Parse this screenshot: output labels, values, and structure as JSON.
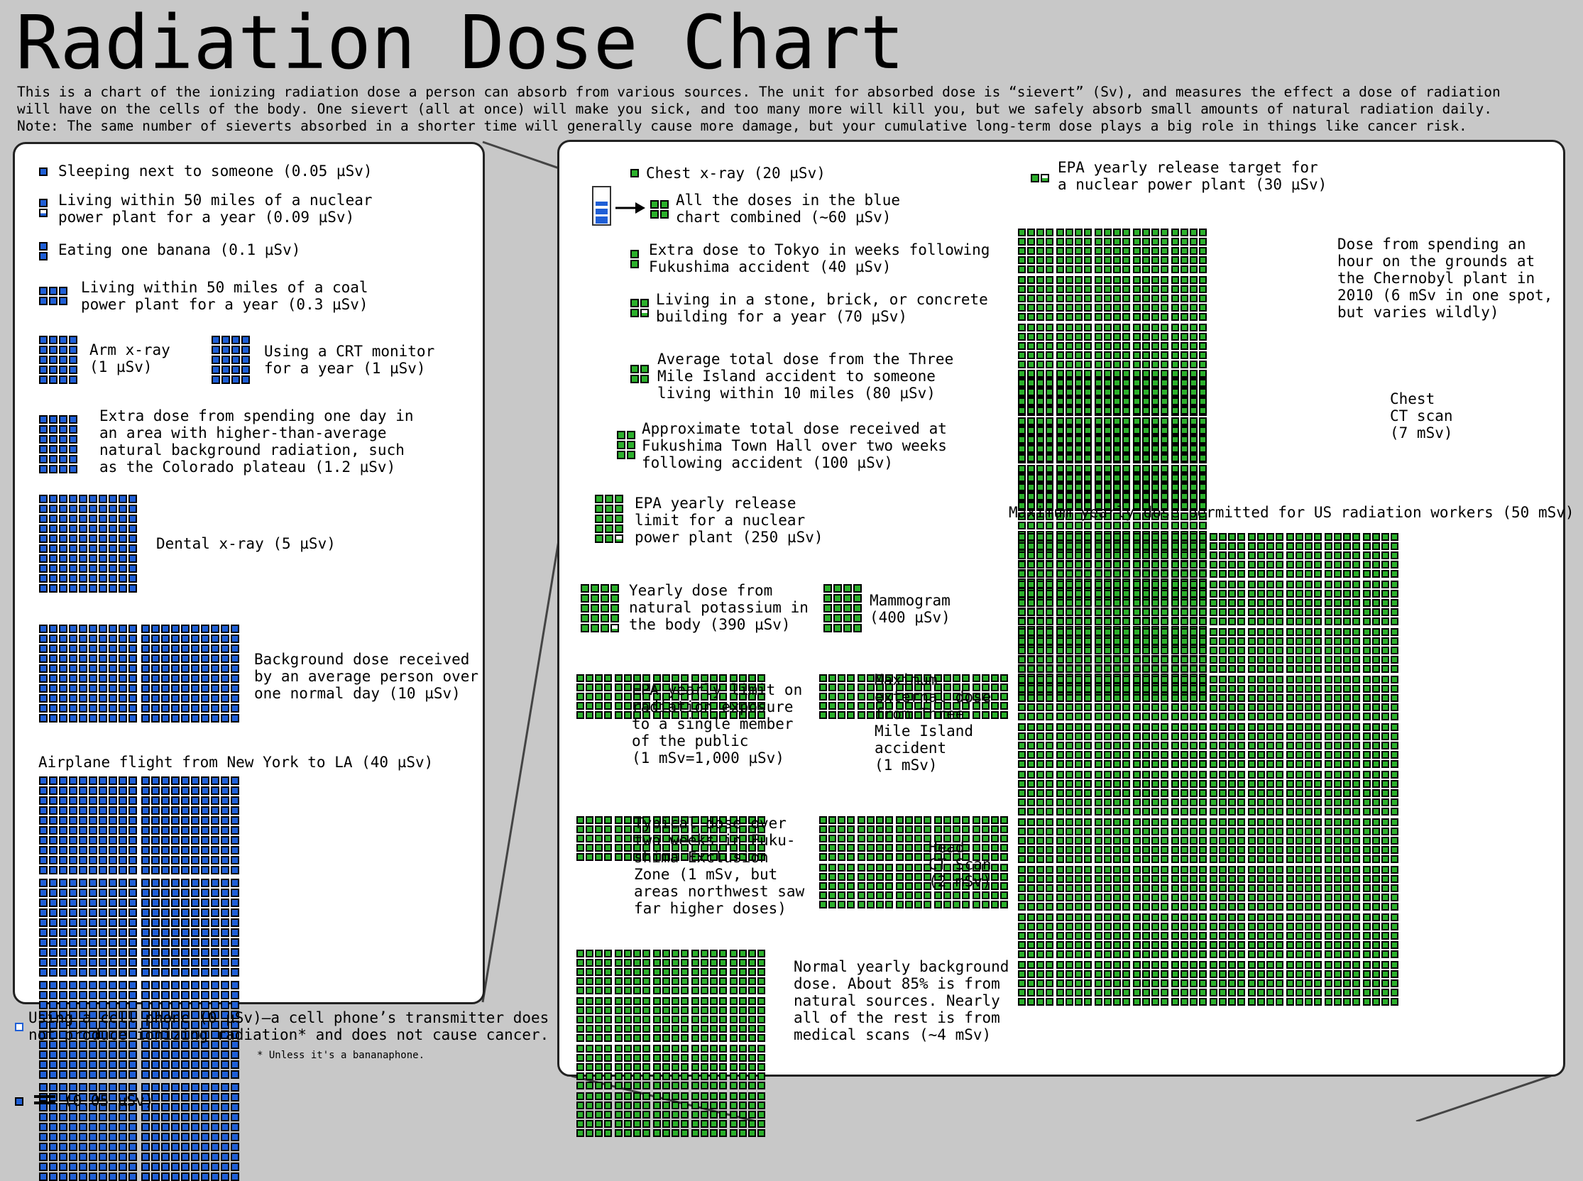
{
  "title": "Radiation Dose Chart",
  "intro": [
    "This is a chart of the ionizing radiation dose a person can absorb from various sources. The unit for absorbed dose is “sievert” (Sv), and measures the effect a dose of radiation",
    "will have on the cells of the body. One sievert (all at once) will make you sick, and too many more will kill you, but we safely absorb small amounts of natural radiation daily.",
    "Note: The same number of sieverts absorbed in a shorter time will generally cause more damage, but your cumulative long-term dose plays a big role in things like cancer risk."
  ],
  "colors": {
    "blue": "#1f5fd6",
    "green": "#2bb02b",
    "background": "#c8c8c8",
    "panel": "#ffffff",
    "cell_border": "#000000"
  },
  "chart_data": {
    "type": "unit-grid",
    "unit": "µSv",
    "blue_square_value": 0.05,
    "green_square_value": 20,
    "blue_series": [
      {
        "label": "Sleeping next to someone (0.05 µSv)",
        "value_usv": 0.05
      },
      {
        "label": "Living within 50 miles of a nuclear power plant for a year (0.09 µSv)",
        "value_usv": 0.09
      },
      {
        "label": "Eating one banana (0.1 µSv)",
        "value_usv": 0.1
      },
      {
        "label": "Living within 50 miles of a coal power plant for a year (0.3 µSv)",
        "value_usv": 0.3
      },
      {
        "label": "Arm x-ray (1 µSv)",
        "value_usv": 1
      },
      {
        "label": "Using a CRT monitor for a year (1 µSv)",
        "value_usv": 1
      },
      {
        "label": "Extra dose from spending one day in an area with higher-than-average natural background radiation, such as the Colorado plateau (1.2 µSv)",
        "value_usv": 1.2
      },
      {
        "label": "Dental x-ray (5 µSv)",
        "value_usv": 5
      },
      {
        "label": "Background dose received by an average person over one normal day (10 µSv)",
        "value_usv": 10
      },
      {
        "label": "Airplane flight from New York to LA (40 µSv)",
        "value_usv": 40
      },
      {
        "label": "Using a cell phone (0 µSv)",
        "value_usv": 0
      }
    ],
    "green_series": [
      {
        "label": "Chest x-ray (20 µSv)",
        "value_usv": 20
      },
      {
        "label": "All the doses in the blue chart combined (~60 µSv)",
        "value_usv": 60
      },
      {
        "label": "EPA yearly release target for a nuclear power plant (30 µSv)",
        "value_usv": 30
      },
      {
        "label": "Extra dose to Tokyo in weeks following Fukushima accident (40 µSv)",
        "value_usv": 40
      },
      {
        "label": "Living in a stone, brick, or concrete building for a year (70 µSv)",
        "value_usv": 70
      },
      {
        "label": "Average total dose from the Three Mile Island accident to someone living within 10 miles (80 µSv)",
        "value_usv": 80
      },
      {
        "label": "Approximate total dose received at Fukushima Town Hall over two weeks following accident (100 µSv)",
        "value_usv": 100
      },
      {
        "label": "EPA yearly release limit for a nuclear power plant (250 µSv)",
        "value_usv": 250
      },
      {
        "label": "Yearly dose from natural potassium in the body (390 µSv)",
        "value_usv": 390
      },
      {
        "label": "Mammogram (400 µSv)",
        "value_usv": 400
      },
      {
        "label": "EPA yearly limit on radiation exposure to a single member of the public (1 mSv=1,000 µSv)",
        "value_usv": 1000
      },
      {
        "label": "Maximum external dose from Three Mile Island accident (1 mSv)",
        "value_usv": 1000
      },
      {
        "label": "Typical dose over two weeks in Fukushima Exclusion Zone (1 mSv)",
        "value_usv": 1000
      },
      {
        "label": "Head CT Scan (2 mSv)",
        "value_usv": 2000
      },
      {
        "label": "Normal yearly background dose (~4 mSv)",
        "value_usv": 4000
      },
      {
        "label": "Dose from spending an hour on the grounds at the Chernobyl plant in 2010 (6 mSv)",
        "value_usv": 6000
      },
      {
        "label": "Chest CT scan (7 mSv)",
        "value_usv": 7000
      },
      {
        "label": "Maximum yearly dose permitted for US radiation workers (50 mSv)",
        "value_usv": 50000
      }
    ]
  },
  "blue_panel": {
    "sleeping": "Sleeping next to someone (0.05 µSv)",
    "nuclear_1": "Living within 50 miles of a nuclear",
    "nuclear_2": "power plant for a year (0.09 µSv)",
    "banana": "Eating one banana (0.1 µSv)",
    "coal_1": "Living within 50 miles of a coal",
    "coal_2": "power plant for a year (0.3 µSv)",
    "arm_1": "Arm x-ray",
    "arm_2": "(1 µSv)",
    "crt_1": "Using a CRT monitor",
    "crt_2": "for a year (1 µSv)",
    "colorado_1": "Extra dose from spending one day in",
    "colorado_2": "an area with higher-than-average",
    "colorado_3": "natural background radiation, such",
    "colorado_4": "as the Colorado plateau (1.2 µSv)",
    "dental": "Dental x-ray (5 µSv)",
    "background_1": "Background dose received",
    "background_2": "by an average person over",
    "background_3": "one normal day (10 µSv)",
    "airplane": "Airplane flight from New York to LA (40 µSv)"
  },
  "cellphone_1": "Using a cell phone (0 µSv)—a cell phone’s transmitter does",
  "cellphone_2": "not produce ionizing radiation* and does not cause cancer.",
  "footnote": "* Unless it's a bananaphone.",
  "legend": "(0.05 µSv)",
  "green_panel": {
    "chest": "Chest x-ray (20 µSv)",
    "combined_1": "All the doses in the blue",
    "combined_2": "chart combined (~60 µSv)",
    "epa_target_1": "EPA yearly release target for",
    "epa_target_2": "a nuclear power plant (30 µSv)",
    "tokyo_1": "Extra dose to Tokyo in weeks following",
    "tokyo_2": "Fukushima accident (40 µSv)",
    "stone_1": "Living in a stone, brick, or concrete",
    "stone_2": "building for a year (70 µSv)",
    "tmi_1": "Average total dose from the Three",
    "tmi_2": "Mile Island accident to someone",
    "tmi_3": "living within 10 miles (80 µSv)",
    "townhall_1": "Approximate total dose received at",
    "townhall_2": "Fukushima Town Hall over two weeks",
    "townhall_3": "following accident (100 µSv)",
    "epa_limit_1": "EPA yearly release",
    "epa_limit_2": "limit for a nuclear",
    "epa_limit_3": "power plant (250 µSv)",
    "potassium_1": "Yearly dose from",
    "potassium_2": "natural potassium in",
    "potassium_3": "the body (390 µSv)",
    "mammogram_1": "Mammogram",
    "mammogram_2": "(400 µSv)",
    "public_1": "EPA yearly limit on",
    "public_2": "radiation exposure",
    "public_3": "to a single member",
    "public_4": "of the public",
    "public_5": "(1 mSv=1,000 µSv)",
    "tmi_max_1": "Maximum",
    "tmi_max_2": "external dose",
    "tmi_max_3": "from Three",
    "tmi_max_4": "Mile Island",
    "tmi_max_5": "accident",
    "tmi_max_6": "(1 mSv)",
    "exclusion_1": "Typical dose over",
    "exclusion_2": "two weeks in Fuku-",
    "exclusion_3": "shima Exclusion",
    "exclusion_4": "Zone (1 mSv, but",
    "exclusion_5": "areas northwest saw",
    "exclusion_6": "far higher doses)",
    "headct_1": "Head",
    "headct_2": "CT Scan",
    "headct_3": "(2 mSv)",
    "yearly_1": "Normal yearly background",
    "yearly_2": "dose. About 85% is from",
    "yearly_3": "natural sources. Nearly",
    "yearly_4": "all of the rest is from",
    "yearly_5": "medical scans (~4 mSv)",
    "chernobyl_1": "Dose from spending an",
    "chernobyl_2": "hour on the grounds at",
    "chernobyl_3": "the Chernobyl plant in",
    "chernobyl_4": "2010 (6 mSv in one spot,",
    "chernobyl_5": "but varies wildly)",
    "chestct_1": "Chest",
    "chestct_2": "CT scan",
    "chestct_3": "(7 mSv)",
    "workers": "Maximum yearly dose permitted for US radiation workers (50 mSv)"
  }
}
